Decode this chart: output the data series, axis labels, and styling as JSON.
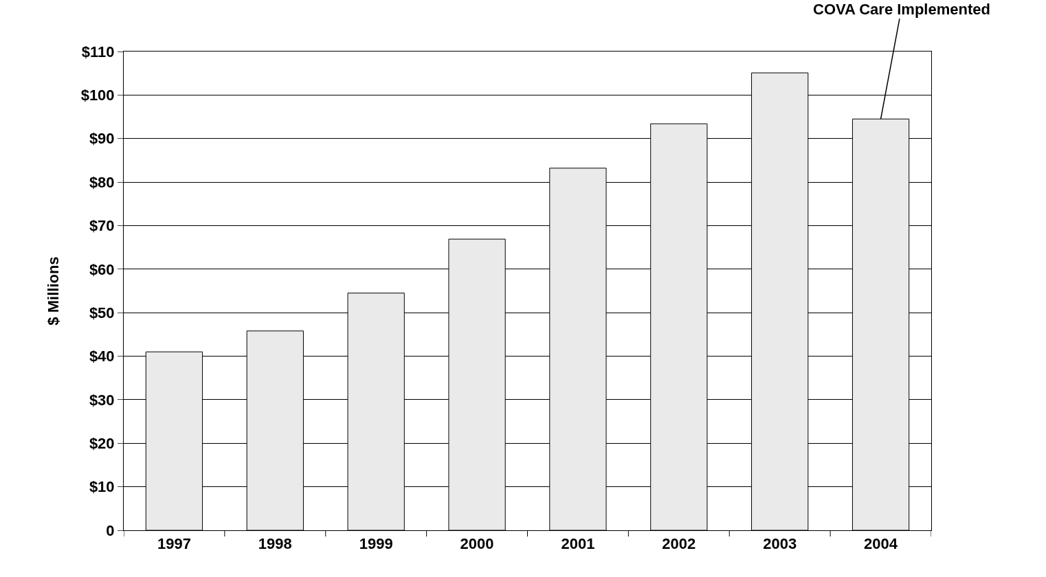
{
  "chart_data": {
    "type": "bar",
    "ylabel": "$ Millions",
    "categories": [
      "1997",
      "1998",
      "1999",
      "2000",
      "2001",
      "2002",
      "2003",
      "2004"
    ],
    "values": [
      41.0,
      45.8,
      54.5,
      66.9,
      83.2,
      93.4,
      105.1,
      94.5
    ],
    "color": "#eaeaea",
    "ylim": [
      0,
      110
    ],
    "yticks": [
      0,
      {
        "value": 10,
        "label": "$10"
      },
      {
        "value": 20,
        "label": "$20"
      },
      {
        "value": 30,
        "label": "$30"
      },
      {
        "value": 40,
        "label": "$40"
      },
      {
        "value": 50,
        "label": "$50"
      },
      {
        "value": 60,
        "label": "$60"
      },
      {
        "value": 70,
        "label": "$70"
      },
      {
        "value": 80,
        "label": "$80"
      },
      {
        "value": 90,
        "label": "$90"
      },
      {
        "value": 100,
        "label": "$100"
      },
      {
        "value": 110,
        "label": "$110"
      }
    ],
    "grid": "y",
    "legend": false,
    "annotations": [
      {
        "text": "COVA Care Implemented",
        "x": "2004",
        "y": 94.5
      }
    ]
  }
}
